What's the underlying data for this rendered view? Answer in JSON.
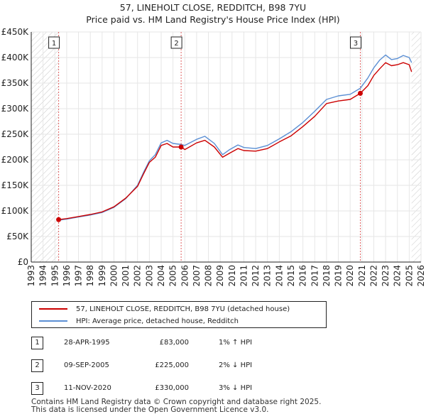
{
  "title_line1": "57, LINEHOLT CLOSE, REDDITCH, B98 7YU",
  "title_line2": "Price paid vs. HM Land Registry's House Price Index (HPI)",
  "colors": {
    "property": "#cc0000",
    "hpi": "#5b8fd4",
    "hatch": "#cccccc",
    "grid": "#e6e6e6"
  },
  "legend": {
    "property_label": "57, LINEHOLT CLOSE, REDDITCH, B98 7YU (detached house)",
    "hpi_label": "HPI: Average price, detached house, Redditch"
  },
  "sales": [
    {
      "num": "1",
      "date": "28-APR-1995",
      "price": "£83,000",
      "diff": "1% ↑ HPI"
    },
    {
      "num": "2",
      "date": "09-SEP-2005",
      "price": "£225,000",
      "diff": "2% ↓ HPI"
    },
    {
      "num": "3",
      "date": "11-NOV-2020",
      "price": "£330,000",
      "diff": "3% ↓ HPI"
    }
  ],
  "footer_line1": "Contains HM Land Registry data © Crown copyright and database right 2025.",
  "footer_line2": "This data is licensed under the Open Government Licence v3.0.",
  "chart_data": {
    "type": "line",
    "title": "57, LINEHOLT CLOSE, REDDITCH, B98 7YU",
    "subtitle": "Price paid vs. HM Land Registry's House Price Index (HPI)",
    "xlabel": "",
    "ylabel": "",
    "xlim": [
      1993,
      2026
    ],
    "ylim": [
      0,
      450000
    ],
    "x_ticks": [
      1993,
      1994,
      1995,
      1996,
      1997,
      1998,
      1999,
      2000,
      2001,
      2002,
      2003,
      2004,
      2005,
      2006,
      2007,
      2008,
      2009,
      2010,
      2011,
      2012,
      2013,
      2014,
      2015,
      2016,
      2017,
      2018,
      2019,
      2020,
      2021,
      2022,
      2023,
      2024,
      2025,
      2026
    ],
    "y_ticks": [
      {
        "value": 0,
        "label": "£0"
      },
      {
        "value": 50000,
        "label": "£50K"
      },
      {
        "value": 100000,
        "label": "£100K"
      },
      {
        "value": 150000,
        "label": "£150K"
      },
      {
        "value": 200000,
        "label": "£200K"
      },
      {
        "value": 250000,
        "label": "£250K"
      },
      {
        "value": 300000,
        "label": "£300K"
      },
      {
        "value": 350000,
        "label": "£350K"
      },
      {
        "value": 400000,
        "label": "£400K"
      },
      {
        "value": 450000,
        "label": "£450K"
      }
    ],
    "hatched_ranges": [
      [
        1993,
        1995.32
      ],
      [
        2025.2,
        2026
      ]
    ],
    "series": [
      {
        "name": "57, LINEHOLT CLOSE, REDDITCH, B98 7YU (detached house)",
        "color": "#cc0000",
        "x": [
          1995.32,
          1996,
          1997,
          1998,
          1999,
          2000,
          2001,
          2002,
          2002.5,
          2003,
          2003.5,
          2004,
          2004.5,
          2005,
          2005.69,
          2006,
          2007,
          2007.7,
          2008.5,
          2009.2,
          2009.8,
          2010.5,
          2011,
          2012,
          2013,
          2014,
          2015,
          2016,
          2017,
          2018,
          2019,
          2020,
          2020.86,
          2021.5,
          2022,
          2022.5,
          2023,
          2023.5,
          2024,
          2024.5,
          2025,
          2025.2
        ],
        "values": [
          83000,
          85000,
          89000,
          93000,
          98000,
          108000,
          125000,
          148000,
          172000,
          195000,
          205000,
          228000,
          232000,
          225000,
          225000,
          220000,
          233000,
          238000,
          225000,
          205000,
          213000,
          222000,
          218000,
          217000,
          222000,
          235000,
          247000,
          265000,
          285000,
          310000,
          315000,
          318000,
          330000,
          345000,
          365000,
          378000,
          390000,
          384000,
          386000,
          390000,
          386000,
          372000
        ]
      },
      {
        "name": "HPI: Average price, detached house, Redditch",
        "color": "#5b8fd4",
        "x": [
          1995.32,
          1996,
          1997,
          1998,
          1999,
          2000,
          2001,
          2002,
          2002.5,
          2003,
          2003.5,
          2004,
          2004.5,
          2005,
          2005.69,
          2006,
          2007,
          2007.7,
          2008.5,
          2009.2,
          2009.8,
          2010.5,
          2011,
          2012,
          2013,
          2014,
          2015,
          2016,
          2017,
          2018,
          2019,
          2020,
          2020.86,
          2021.5,
          2022,
          2022.5,
          2023,
          2023.5,
          2024,
          2024.5,
          2025,
          2025.2
        ],
        "values": [
          82000,
          84000,
          88000,
          92000,
          97000,
          107000,
          124000,
          150000,
          175000,
          198000,
          210000,
          233000,
          238000,
          232000,
          230000,
          228000,
          240000,
          246000,
          232000,
          210000,
          220000,
          229000,
          224000,
          222000,
          228000,
          241000,
          255000,
          273000,
          295000,
          318000,
          325000,
          328000,
          340000,
          360000,
          380000,
          395000,
          405000,
          396000,
          398000,
          404000,
          400000,
          390000
        ]
      }
    ],
    "markers": [
      {
        "label": "1",
        "x": 1995.32,
        "value": 83000
      },
      {
        "label": "2",
        "x": 2005.69,
        "value": 225000
      },
      {
        "label": "3",
        "x": 2020.86,
        "value": 330000
      }
    ]
  }
}
